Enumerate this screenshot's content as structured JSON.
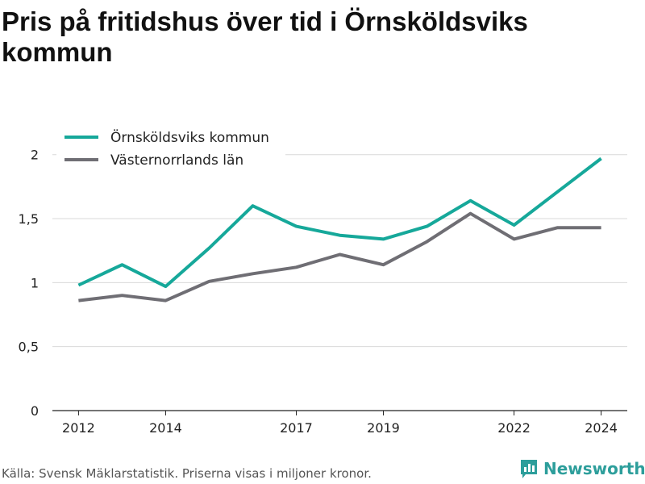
{
  "title": "Pris på fritidshus över tid i Örnsköldsviks kommun",
  "footer": "Källa: Svensk Mäklarstatistik. Priserna visas i miljoner kronor.",
  "brand": {
    "name": "Newsworthy",
    "icon": "bar-chart-icon",
    "color": "#2d9e9b"
  },
  "chart_data": {
    "type": "line",
    "x": [
      2012,
      2013,
      2014,
      2015,
      2016,
      2017,
      2018,
      2019,
      2020,
      2021,
      2022,
      2023,
      2024
    ],
    "x_ticks": [
      2012,
      2014,
      2017,
      2019,
      2022,
      2024
    ],
    "y_ticks": [
      0,
      0.5,
      1,
      1.5,
      2
    ],
    "y_tick_labels": [
      "0",
      "0,5",
      "1",
      "1,5",
      "2"
    ],
    "ylim": [
      0,
      2.2
    ],
    "xlim": [
      2011.4,
      2024.6
    ],
    "grid": true,
    "legend": "top-left",
    "series": [
      {
        "name": "Örnsköldsviks kommun",
        "color": "#16a89a",
        "values": [
          0.98,
          1.14,
          0.97,
          1.27,
          1.6,
          1.44,
          1.37,
          1.34,
          1.44,
          1.64,
          1.45,
          1.71,
          1.97
        ]
      },
      {
        "name": "Västernorrlands län",
        "color": "#6f6e74",
        "values": [
          0.86,
          0.9,
          0.86,
          1.01,
          1.07,
          1.12,
          1.22,
          1.14,
          1.32,
          1.54,
          1.34,
          1.43,
          1.43
        ]
      }
    ]
  }
}
